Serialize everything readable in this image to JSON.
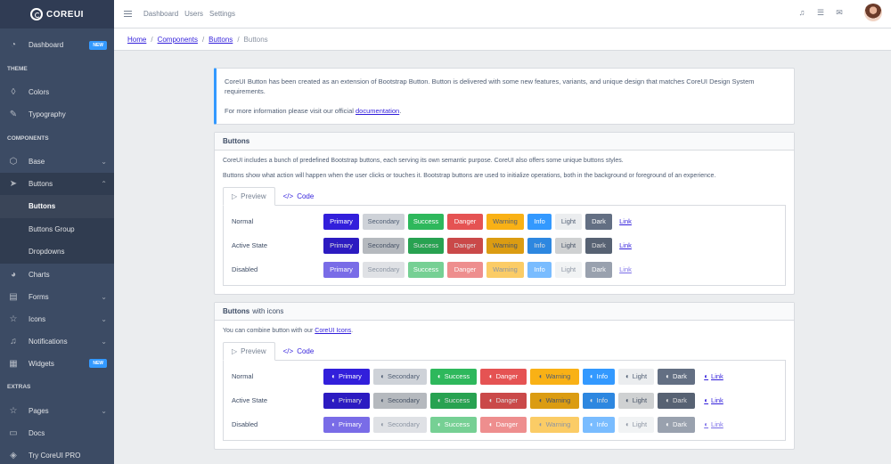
{
  "brand": {
    "name": "COREUI"
  },
  "sidebar": {
    "top": [
      {
        "label": "Dashboard",
        "icon": "speedometer-icon",
        "badge": "NEW"
      }
    ],
    "theme_title": "THEME",
    "theme": [
      {
        "label": "Colors",
        "icon": "drop-icon"
      },
      {
        "label": "Typography",
        "icon": "pencil-icon"
      }
    ],
    "components_title": "COMPONENTS",
    "components": [
      {
        "label": "Base",
        "icon": "puzzle-icon"
      },
      {
        "label": "Buttons",
        "icon": "cursor-icon"
      }
    ],
    "buttons_sub": [
      "Buttons",
      "Buttons Group",
      "Dropdowns"
    ],
    "more": [
      {
        "label": "Charts",
        "icon": "chart-pie-icon"
      },
      {
        "label": "Forms",
        "icon": "notes-icon"
      },
      {
        "label": "Icons",
        "icon": "star-icon"
      },
      {
        "label": "Notifications",
        "icon": "bell-icon"
      },
      {
        "label": "Widgets",
        "icon": "calculator-icon",
        "badge": "NEW"
      }
    ],
    "extras_title": "EXTRAS",
    "extras": [
      {
        "label": "Pages",
        "icon": "star-icon"
      },
      {
        "label": "Docs",
        "icon": "description-icon"
      },
      {
        "label": "Try CoreUI PRO",
        "icon": "layers-icon"
      }
    ]
  },
  "header": {
    "links": [
      "Dashboard",
      "Users",
      "Settings"
    ]
  },
  "breadcrumb": [
    "Home",
    "Components",
    "Buttons",
    "Buttons"
  ],
  "callout": {
    "text": "CoreUI Button has been created as an extension of Bootstrap Button. Button is delivered with some new features, variants, and unique design that matches CoreUI Design System requirements.",
    "more_prefix": "For more information please visit our official ",
    "more_link": "documentation",
    "more_suffix": "."
  },
  "card1": {
    "title": "Buttons",
    "p1": "CoreUI includes a bunch of predefined Bootstrap buttons, each serving its own semantic purpose. CoreUI also offers some unique buttons styles.",
    "p2": "Buttons show what action will happen when the user clicks or touches it. Bootstrap buttons are used to initialize operations, both in the background or foreground of an experience.",
    "tab_preview": "Preview",
    "tab_code": "Code",
    "rows": [
      "Normal",
      "Active State",
      "Disabled"
    ]
  },
  "card2": {
    "title": "Buttons",
    "title_suffix": "with icons",
    "p_prefix": "You can combine button with our ",
    "p_link": "CoreUI Icons",
    "p_suffix": ".",
    "tab_preview": "Preview",
    "tab_code": "Code",
    "rows": [
      "Normal",
      "Active State",
      "Disabled"
    ]
  },
  "buttons": [
    {
      "label": "Primary",
      "bg": "#321fdb",
      "fg": "#ffffff"
    },
    {
      "label": "Secondary",
      "bg": "#ced2d8",
      "fg": "#4f5d73"
    },
    {
      "label": "Success",
      "bg": "#2eb85c",
      "fg": "#ffffff"
    },
    {
      "label": "Danger",
      "bg": "#e55353",
      "fg": "#ffffff"
    },
    {
      "label": "Warning",
      "bg": "#f9b115",
      "fg": "#4f5d73"
    },
    {
      "label": "Info",
      "bg": "#3399ff",
      "fg": "#ffffff"
    },
    {
      "label": "Light",
      "bg": "#ebedef",
      "fg": "#4f5d73"
    },
    {
      "label": "Dark",
      "bg": "#636f83",
      "fg": "#ffffff"
    },
    {
      "label": "Link",
      "bg": "transparent",
      "fg": "#321fdb"
    }
  ]
}
